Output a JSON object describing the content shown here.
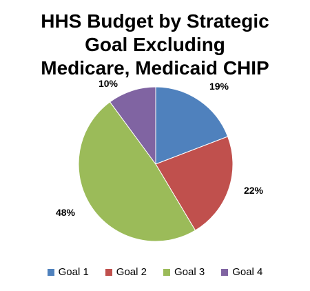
{
  "chart_data": {
    "type": "pie",
    "title_lines": [
      "HHS Budget by Strategic",
      "Goal Excluding",
      "Medicare, Medicaid CHIP"
    ],
    "categories": [
      "Goal 1",
      "Goal 2",
      "Goal 3",
      "Goal 4"
    ],
    "values": [
      19,
      22,
      48,
      10
    ],
    "labels": [
      "19%",
      "22%",
      "48%",
      "10%"
    ],
    "colors": [
      "#4F81BD",
      "#C0504D",
      "#9BBB59",
      "#8064A2"
    ],
    "legend_position": "bottom"
  }
}
